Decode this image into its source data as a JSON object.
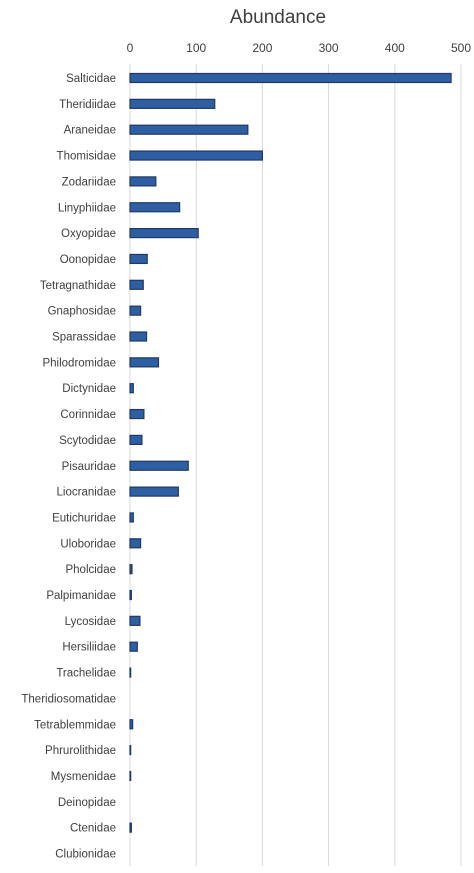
{
  "chart_data": {
    "type": "bar",
    "orientation": "horizontal",
    "title": "Abundance",
    "xlim": [
      0,
      500
    ],
    "xticks": [
      0,
      100,
      200,
      300,
      400,
      500
    ],
    "x_axis_position": "top",
    "grid": true,
    "legend": "none",
    "bar_color": "#2e5fa3",
    "categories": [
      "Salticidae",
      "Theridiidae",
      "Araneidae",
      "Thomisidae",
      "Zodariidae",
      "Linyphiidae",
      "Oxyopidae",
      "Oonopidae",
      "Tetragnathidae",
      "Gnaphosidae",
      "Sparassidae",
      "Philodromidae",
      "Dictynidae",
      "Corinnidae",
      "Scytodidae",
      "Pisauridae",
      "Liocranidae",
      "Eutichuridae",
      "Uloboridae",
      "Pholcidae",
      "Palpimanidae",
      "Lycosidae",
      "Hersiliidae",
      "Trachelidae",
      "Theridiosomatidae",
      "Tetrablemmidae",
      "Phrurolithidae",
      "Mysmenidae",
      "Deinopidae",
      "Ctenidae",
      "Clubionidae"
    ],
    "values": [
      485,
      128,
      178,
      200,
      39,
      75,
      103,
      26,
      20,
      16,
      25,
      43,
      5,
      21,
      18,
      88,
      73,
      5,
      16,
      3,
      2,
      15,
      11,
      1,
      0,
      4,
      1,
      1,
      0,
      2,
      0
    ]
  }
}
